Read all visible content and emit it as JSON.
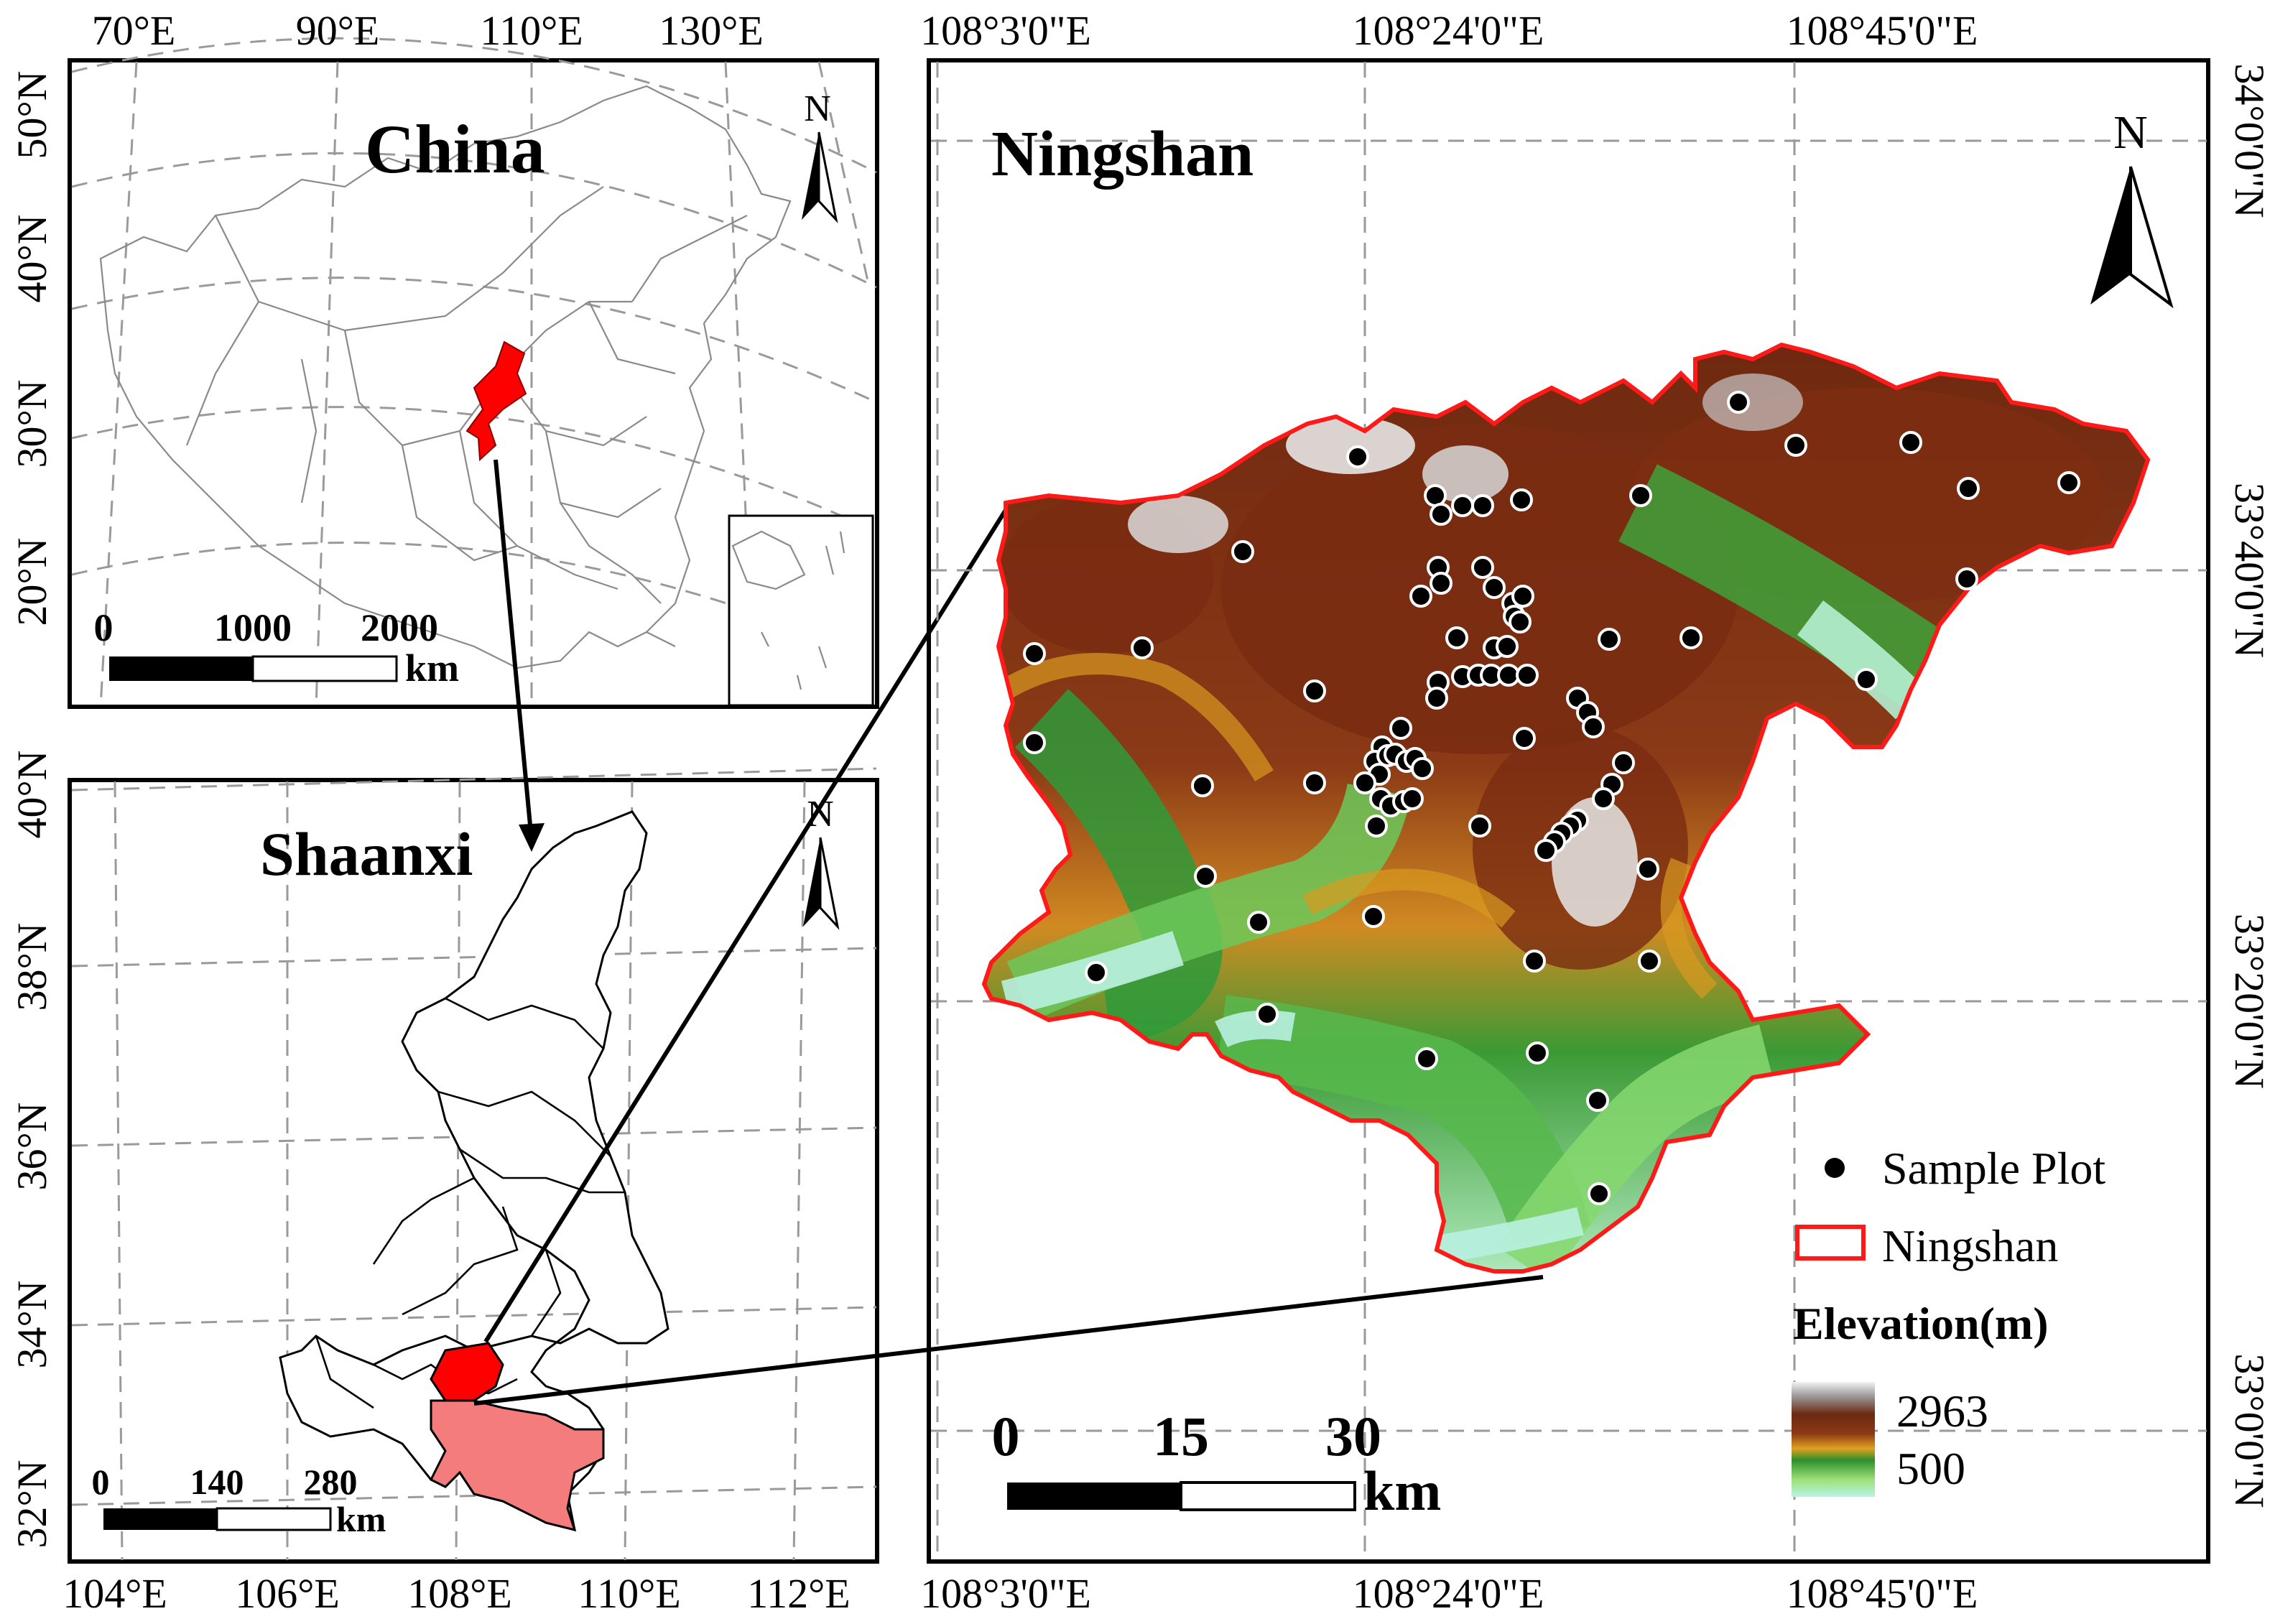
{
  "panels": {
    "china": {
      "title": "China",
      "north": "N",
      "top_ticks": [
        "70°E",
        "90°E",
        "110°E",
        "130°E"
      ],
      "left_ticks": [
        "50°N",
        "40°N",
        "30°N",
        "20°N"
      ],
      "scalebar": {
        "labels": [
          "0",
          "1000",
          "2000"
        ],
        "unit": "km"
      }
    },
    "shaanxi": {
      "title": "Shaanxi",
      "north": "N",
      "bottom_ticks": [
        "104°E",
        "106°E",
        "108°E",
        "110°E",
        "112°E"
      ],
      "left_ticks": [
        "40°N",
        "38°N",
        "36°N",
        "34°N",
        "32°N"
      ],
      "scalebar": {
        "labels": [
          "0",
          "140",
          "280"
        ],
        "unit": "km"
      }
    },
    "ningshan": {
      "title": "Ningshan",
      "north": "N",
      "top_ticks": [
        "108°3'0\"E",
        "108°24'0\"E",
        "108°45'0\"E"
      ],
      "bottom_ticks": [
        "108°3'0\"E",
        "108°24'0\"E",
        "108°45'0\"E"
      ],
      "right_ticks": [
        "34°0'0\"N",
        "33°40'0\"N",
        "33°20'0\"N",
        "33°0'0\"N"
      ],
      "scalebar": {
        "labels": [
          "0",
          "15",
          "30"
        ],
        "unit": "km"
      },
      "legend": {
        "sample_plot": "Sample Plot",
        "boundary": "Ningshan",
        "elevation_title": "Elevation(m)",
        "elevation_max": "2963",
        "elevation_min": "500"
      }
    }
  },
  "colors": {
    "highlight_red": "#ff0000",
    "shaanxi_pink": "#f47c7c",
    "boundary": "#ff1a1a",
    "elev_high": "#7a2a10",
    "elev_peak": "#e8e8e8",
    "elev_mid": "#d8a020",
    "elev_low": "#2f9a3a",
    "elev_valley": "#b8f0d8"
  }
}
